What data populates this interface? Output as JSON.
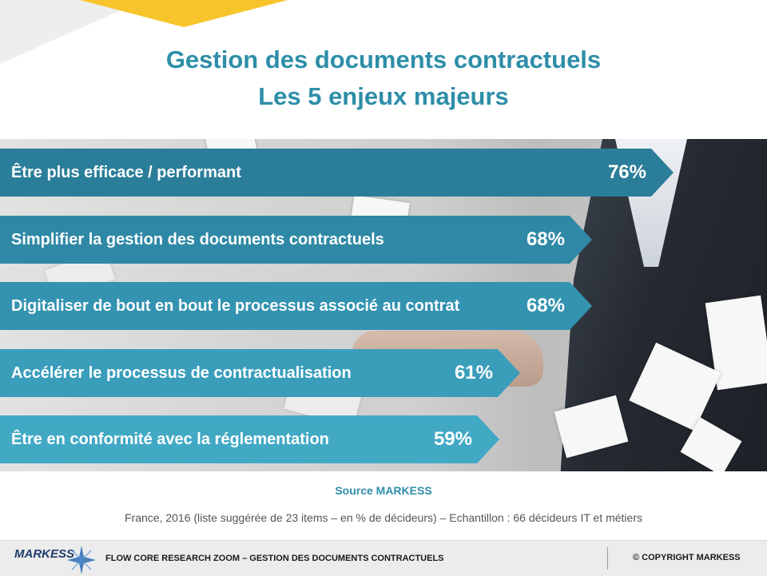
{
  "title": {
    "line1": "Gestion des documents contractuels",
    "line2": "Les 5 enjeux majeurs"
  },
  "chart_data": {
    "type": "bar",
    "orientation": "horizontal",
    "categories": [
      "Être plus efficace / performant",
      "Simplifier la gestion des documents contractuels",
      "Digitaliser de bout en bout le processus associé au contrat",
      "Accélérer le processus de contractualisation",
      "Être en conformité avec la réglementation"
    ],
    "values": [
      76,
      68,
      68,
      61,
      59
    ],
    "value_labels": [
      "76%",
      "68%",
      "68%",
      "61%",
      "59%"
    ],
    "unit": "%",
    "colors": [
      "#2b7e99",
      "#2f89a6",
      "#3393b0",
      "#3a9ebb",
      "#42a9c5"
    ]
  },
  "source": "Source MARKESS",
  "note": "France, 2016 (liste suggérée de 23 items – en % de décideurs) – Echantillon : 66 décideurs IT et métiers",
  "footer": {
    "logo": "MARKESS",
    "text": "FLOW CORE RESEARCH ZOOM – GESTION DES DOCUMENTS CONTRACTUELS",
    "copyright": "© COPYRIGHT MARKESS"
  }
}
